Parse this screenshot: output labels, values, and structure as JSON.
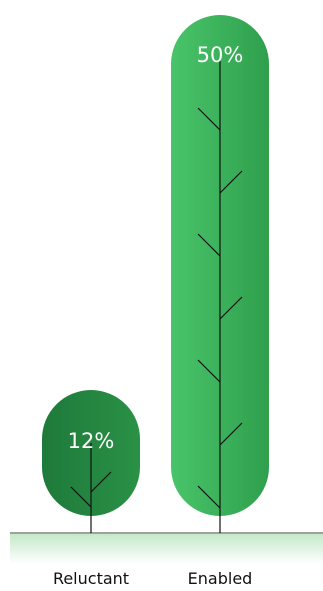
{
  "chart_data": {
    "type": "bar",
    "categories": [
      "Reluctant",
      "Enabled"
    ],
    "values": [
      12,
      50
    ],
    "value_labels": [
      "12%",
      "50%"
    ],
    "ylim": [
      0,
      50
    ],
    "colors": {
      "reluctant_dark": "#1e7a3a",
      "reluctant_light": "#2a9146",
      "enabled_light": "#49c46a",
      "enabled_dark": "#2f9f4d",
      "trunk": "#111111",
      "ground": "#3f3f3f",
      "grass": "#c5e9c9"
    }
  }
}
